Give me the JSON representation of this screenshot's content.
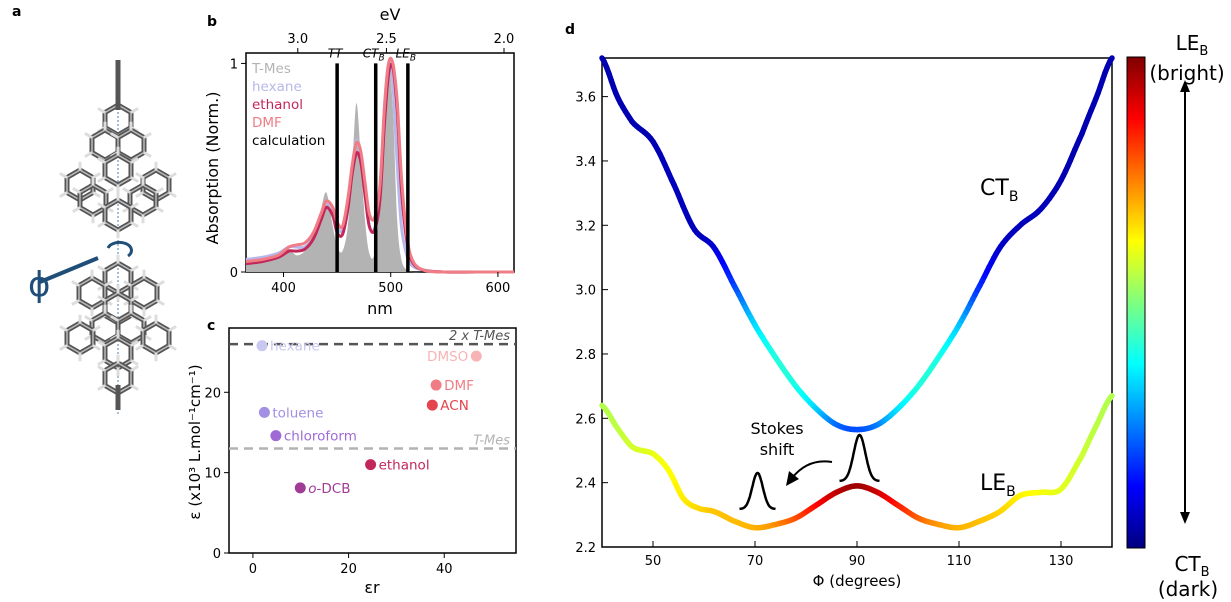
{
  "panels": {
    "a": {
      "letter": "a",
      "phi_label": "ϕ"
    },
    "b": {
      "letter": "b"
    },
    "c": {
      "letter": "c"
    },
    "d": {
      "letter": "d"
    }
  },
  "chart_data": [
    {
      "type": "area",
      "panel": "b",
      "xlabel": "nm",
      "ylabel": "Absorption (Norm.)",
      "top_xlabel": "eV",
      "xlim": [
        365,
        615
      ],
      "ylim": [
        0,
        1.05
      ],
      "xticks": [
        400,
        500,
        600
      ],
      "yticks": [
        0,
        1
      ],
      "top_ticks": [
        {
          "label": "3.0",
          "nm": 413.3
        },
        {
          "label": "2.5",
          "nm": 496.0
        },
        {
          "label": "2.0",
          "nm": 620.0
        }
      ],
      "legend": [
        {
          "label": "T-Mes",
          "color": "#b3b3b3"
        },
        {
          "label": "hexane",
          "color": "#b7b7ea"
        },
        {
          "label": "ethanol",
          "color": "#c2275a"
        },
        {
          "label": "DMF",
          "color": "#f07d86"
        },
        {
          "label": "calculation",
          "color": "#000000"
        }
      ],
      "sticks": [
        {
          "label": "TT",
          "sub": "",
          "x": 450,
          "y": 1.0
        },
        {
          "label": "CT",
          "sub": "B",
          "x": 486,
          "y": 1.0
        },
        {
          "label": "LE",
          "sub": "B",
          "x": 516,
          "y": 1.0
        }
      ],
      "series": [
        {
          "name": "T-Mes",
          "color": "#b3b3b3",
          "x": [
            365,
            380,
            395,
            405,
            412,
            420,
            428,
            435,
            440,
            446,
            450,
            455,
            460,
            464,
            468,
            472,
            476,
            480,
            485,
            490,
            494,
            498,
            502,
            506,
            510,
            515,
            520,
            530,
            550,
            580,
            615
          ],
          "y": [
            0.06,
            0.06,
            0.07,
            0.11,
            0.08,
            0.1,
            0.16,
            0.3,
            0.38,
            0.22,
            0.12,
            0.1,
            0.22,
            0.5,
            0.81,
            0.55,
            0.25,
            0.09,
            0.09,
            0.35,
            0.82,
            1.01,
            0.78,
            0.25,
            0.06,
            0.01,
            0.0,
            0.0,
            0.0,
            0.0,
            0.0
          ]
        },
        {
          "name": "hexane",
          "color": "#b7b7ea",
          "x": [
            365,
            380,
            395,
            405,
            412,
            420,
            428,
            435,
            440,
            446,
            450,
            455,
            460,
            464,
            468,
            472,
            476,
            480,
            485,
            490,
            494,
            498,
            502,
            506,
            510,
            515,
            520,
            530,
            550,
            580,
            615
          ],
          "y": [
            0.06,
            0.07,
            0.09,
            0.12,
            0.12,
            0.12,
            0.17,
            0.26,
            0.33,
            0.3,
            0.22,
            0.2,
            0.33,
            0.5,
            0.63,
            0.56,
            0.38,
            0.22,
            0.21,
            0.38,
            0.78,
            1.0,
            0.9,
            0.52,
            0.22,
            0.08,
            0.03,
            0.01,
            0.0,
            0.0,
            0.0
          ]
        },
        {
          "name": "ethanol",
          "color": "#c2275a",
          "x": [
            365,
            380,
            395,
            405,
            412,
            420,
            428,
            435,
            440,
            446,
            450,
            455,
            460,
            464,
            468,
            472,
            476,
            480,
            485,
            490,
            494,
            498,
            502,
            506,
            510,
            515,
            520,
            530,
            550,
            580,
            615
          ],
          "y": [
            0.04,
            0.05,
            0.07,
            0.1,
            0.1,
            0.11,
            0.16,
            0.25,
            0.31,
            0.27,
            0.19,
            0.18,
            0.3,
            0.47,
            0.57,
            0.53,
            0.37,
            0.22,
            0.2,
            0.35,
            0.7,
            0.95,
            0.98,
            0.78,
            0.4,
            0.15,
            0.05,
            0.01,
            0.0,
            0.0,
            0.0
          ]
        },
        {
          "name": "DMF",
          "color": "#f07d86",
          "x": [
            365,
            380,
            395,
            405,
            412,
            420,
            428,
            435,
            440,
            446,
            450,
            455,
            460,
            464,
            468,
            472,
            476,
            480,
            485,
            490,
            494,
            498,
            502,
            506,
            510,
            515,
            520,
            530,
            550,
            580,
            615
          ],
          "y": [
            0.05,
            0.06,
            0.08,
            0.12,
            0.13,
            0.14,
            0.19,
            0.28,
            0.34,
            0.31,
            0.24,
            0.22,
            0.35,
            0.51,
            0.62,
            0.58,
            0.43,
            0.28,
            0.26,
            0.42,
            0.78,
            1.0,
            1.0,
            0.82,
            0.46,
            0.18,
            0.06,
            0.01,
            0.0,
            0.0,
            0.0
          ]
        }
      ]
    },
    {
      "type": "scatter",
      "panel": "c",
      "xlabel": "εr",
      "ylabel": "ε (x10³ L.mol⁻¹cm⁻¹)",
      "xlim": [
        -5,
        55
      ],
      "ylim": [
        0,
        28
      ],
      "xticks": [
        0,
        20,
        40
      ],
      "yticks": [
        0,
        10,
        20
      ],
      "reference_lines": [
        {
          "label": "2 x T-Mes",
          "y": 26.0,
          "color": "#555555"
        },
        {
          "label": "T-Mes",
          "y": 13.0,
          "color": "#b3b3b3"
        }
      ],
      "points": [
        {
          "label": "hexane",
          "x": 1.9,
          "y": 25.8,
          "color": "#c8c8f0"
        },
        {
          "label": "toluene",
          "x": 2.4,
          "y": 17.5,
          "color": "#a190e4"
        },
        {
          "label": "chloroform",
          "x": 4.8,
          "y": 14.6,
          "color": "#9f6ad4"
        },
        {
          "label": "o-DCB",
          "x": 9.9,
          "y": 8.1,
          "color": "#a03c96"
        },
        {
          "label": "ethanol",
          "x": 24.6,
          "y": 11.0,
          "color": "#c2275a"
        },
        {
          "label": "ACN",
          "x": 37.5,
          "y": 18.4,
          "color": "#e5434d"
        },
        {
          "label": "DMF",
          "x": 38.3,
          "y": 20.9,
          "color": "#f07d86"
        },
        {
          "label": "DMSO",
          "x": 46.7,
          "y": 24.5,
          "color": "#f8b4b4"
        }
      ]
    },
    {
      "type": "line",
      "panel": "d",
      "xlabel": "Φ (degrees)",
      "ylabel": "",
      "xlim": [
        40,
        140
      ],
      "ylim": [
        2.2,
        3.72
      ],
      "xticks": [
        50,
        70,
        90,
        110,
        130
      ],
      "yticks": [
        2.2,
        2.4,
        2.6,
        2.8,
        3.0,
        3.2,
        3.4,
        3.6
      ],
      "colorbar": {
        "colors": [
          "#00007f",
          "#0000ff",
          "#007fff",
          "#00ffff",
          "#7fff7f",
          "#ffff00",
          "#ff7f00",
          "#ff0000",
          "#7f0000"
        ],
        "top_label": "LE",
        "top_sub": "B",
        "top_note": "(bright)",
        "bottom_label": "CT",
        "bottom_sub": "B",
        "bottom_note": "(dark)"
      },
      "annotations": {
        "stokes_line1": "Stokes",
        "stokes_line2": "shift"
      },
      "series": [
        {
          "name": "CT",
          "sub": "B",
          "x": [
            40,
            43,
            46,
            50,
            54,
            58,
            62,
            66,
            70,
            74,
            78,
            82,
            86,
            90,
            94,
            98,
            102,
            106,
            110,
            114,
            118,
            122,
            126,
            130,
            134,
            137,
            140
          ],
          "y": [
            3.72,
            3.6,
            3.52,
            3.46,
            3.33,
            3.19,
            3.13,
            3.01,
            2.89,
            2.79,
            2.7,
            2.63,
            2.58,
            2.565,
            2.58,
            2.63,
            2.7,
            2.79,
            2.89,
            3.01,
            3.13,
            3.2,
            3.25,
            3.34,
            3.48,
            3.6,
            3.72
          ],
          "c": [
            0.05,
            0.05,
            0.05,
            0.05,
            0.06,
            0.06,
            0.08,
            0.18,
            0.33,
            0.4,
            0.4,
            0.34,
            0.24,
            0.2,
            0.24,
            0.34,
            0.4,
            0.4,
            0.33,
            0.18,
            0.08,
            0.06,
            0.06,
            0.05,
            0.05,
            0.05,
            0.05
          ]
        },
        {
          "name": "LE",
          "sub": "B",
          "x": [
            40,
            43,
            46,
            50,
            53,
            56,
            59,
            62,
            66,
            70,
            74,
            78,
            82,
            86,
            90,
            94,
            98,
            102,
            106,
            110,
            114,
            118,
            122,
            126,
            130,
            134,
            137,
            140
          ],
          "y": [
            2.64,
            2.57,
            2.51,
            2.49,
            2.44,
            2.35,
            2.32,
            2.31,
            2.28,
            2.26,
            2.27,
            2.29,
            2.33,
            2.37,
            2.39,
            2.37,
            2.33,
            2.29,
            2.27,
            2.26,
            2.28,
            2.31,
            2.36,
            2.37,
            2.38,
            2.48,
            2.58,
            2.67
          ],
          "c": [
            0.55,
            0.56,
            0.58,
            0.6,
            0.62,
            0.64,
            0.66,
            0.68,
            0.69,
            0.7,
            0.73,
            0.79,
            0.86,
            0.93,
            0.97,
            0.93,
            0.86,
            0.79,
            0.73,
            0.7,
            0.69,
            0.67,
            0.64,
            0.62,
            0.6,
            0.58,
            0.56,
            0.55
          ]
        }
      ]
    }
  ]
}
